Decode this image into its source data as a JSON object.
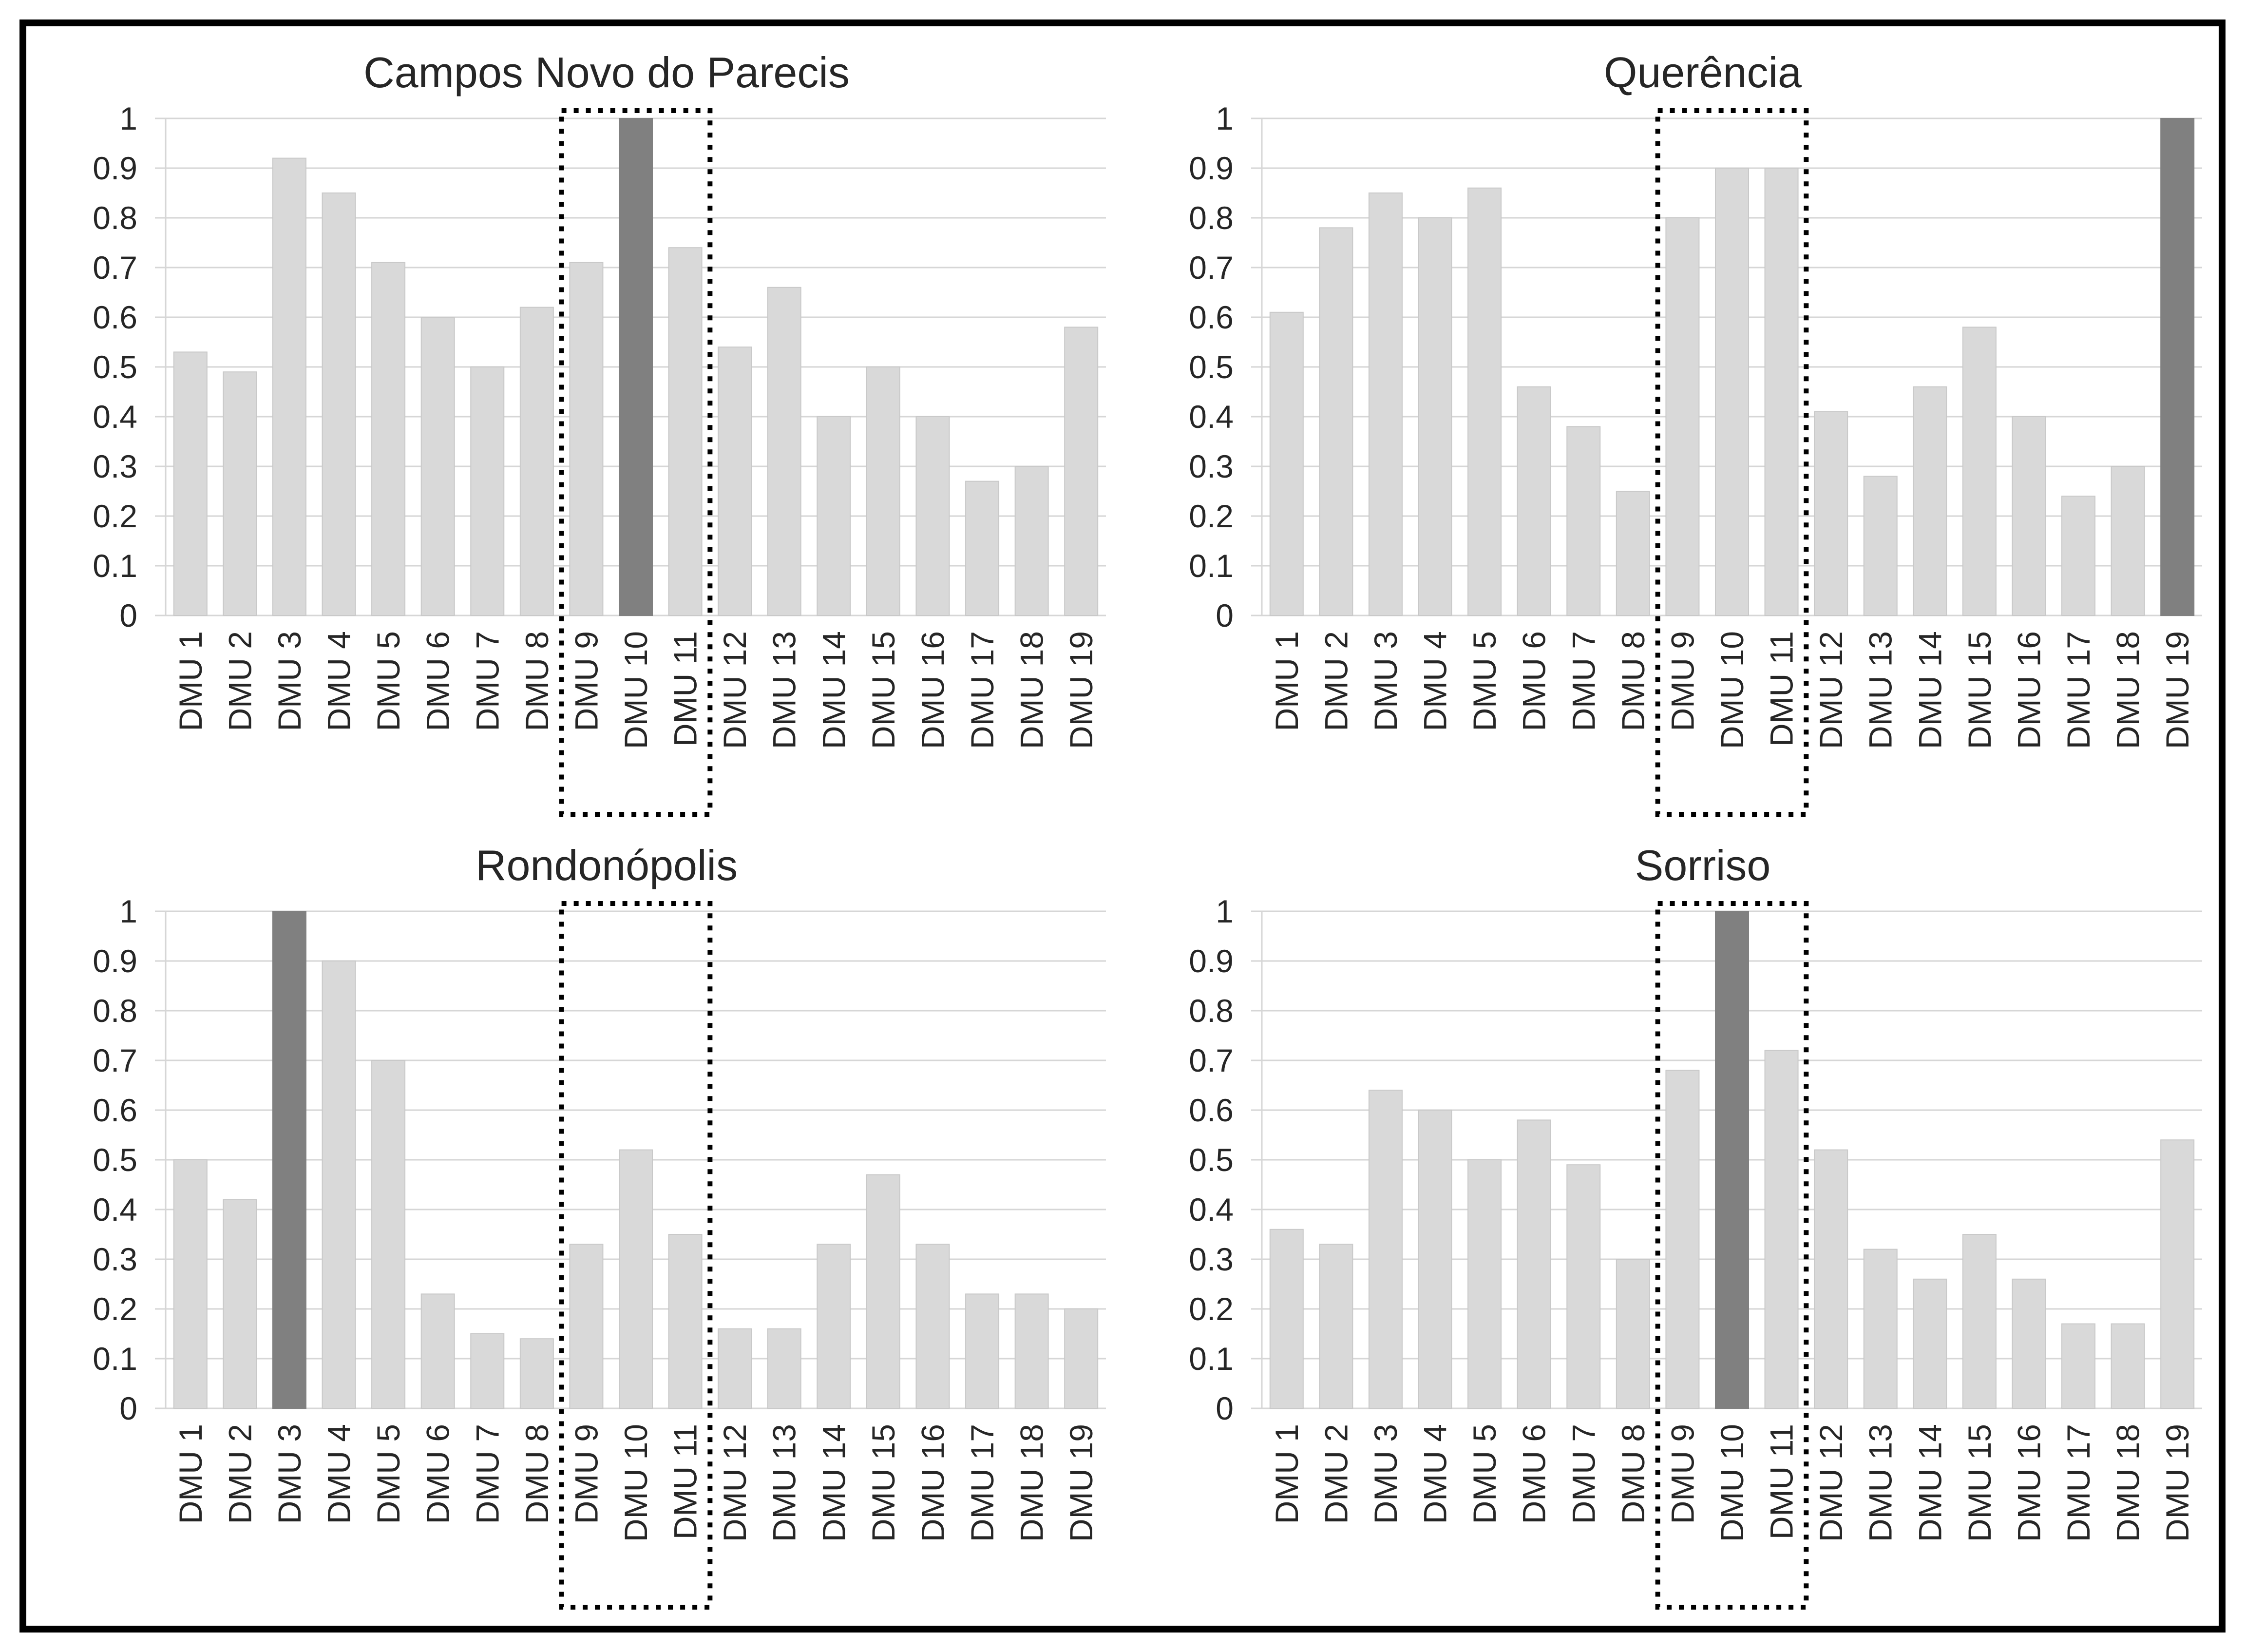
{
  "figure": {
    "background": "#ffffff",
    "border_color": "#000000"
  },
  "colors": {
    "bar": "#d9d9d9",
    "bar_border": "#c9c9c9",
    "highlight": "#808080",
    "gridline": "#d6d6d6",
    "text": "#262626",
    "box": "#000000"
  },
  "axis": {
    "ylim": [
      0,
      1
    ],
    "ytick_labels": [
      "0",
      "0.1",
      "0.2",
      "0.3",
      "0.4",
      "0.5",
      "0.6",
      "0.7",
      "0.8",
      "0.9",
      "1"
    ]
  },
  "chart_data": [
    {
      "type": "bar",
      "title": "Campos Novo do Parecis",
      "categories": [
        "DMU 1",
        "DMU 2",
        "DMU 3",
        "DMU 4",
        "DMU 5",
        "DMU 6",
        "DMU 7",
        "DMU 8",
        "DMU 9",
        "DMU 10",
        "DMU 11",
        "DMU 12",
        "DMU 13",
        "DMU 14",
        "DMU 15",
        "DMU 16",
        "DMU 17",
        "DMU 18",
        "DMU 19"
      ],
      "values": [
        0.53,
        0.49,
        0.92,
        0.85,
        0.71,
        0.6,
        0.5,
        0.62,
        0.71,
        1.0,
        0.74,
        0.54,
        0.66,
        0.4,
        0.5,
        0.4,
        0.27,
        0.3,
        0.58
      ],
      "ylim": [
        0,
        1
      ],
      "highlight_category": "DMU 10",
      "dotted_box": {
        "from": "DMU 9",
        "to": "DMU 11"
      },
      "grid": true,
      "legend": "none"
    },
    {
      "type": "bar",
      "title": "Querência",
      "categories": [
        "DMU 1",
        "DMU 2",
        "DMU 3",
        "DMU 4",
        "DMU 5",
        "DMU 6",
        "DMU 7",
        "DMU 8",
        "DMU 9",
        "DMU 10",
        "DMU 11",
        "DMU 12",
        "DMU 13",
        "DMU 14",
        "DMU 15",
        "DMU 16",
        "DMU 17",
        "DMU 18",
        "DMU 19"
      ],
      "values": [
        0.61,
        0.78,
        0.85,
        0.8,
        0.86,
        0.46,
        0.38,
        0.25,
        0.8,
        0.9,
        0.9,
        0.41,
        0.28,
        0.46,
        0.58,
        0.4,
        0.24,
        0.3,
        1.0
      ],
      "ylim": [
        0,
        1
      ],
      "highlight_category": "DMU 19",
      "dotted_box": {
        "from": "DMU 9",
        "to": "DMU 11"
      },
      "grid": true,
      "legend": "none"
    },
    {
      "type": "bar",
      "title": "Rondonópolis",
      "categories": [
        "DMU 1",
        "DMU 2",
        "DMU 3",
        "DMU 4",
        "DMU 5",
        "DMU 6",
        "DMU 7",
        "DMU 8",
        "DMU 9",
        "DMU 10",
        "DMU 11",
        "DMU 12",
        "DMU 13",
        "DMU 14",
        "DMU 15",
        "DMU 16",
        "DMU 17",
        "DMU 18",
        "DMU 19"
      ],
      "values": [
        0.5,
        0.42,
        1.0,
        0.9,
        0.7,
        0.23,
        0.15,
        0.14,
        0.33,
        0.52,
        0.35,
        0.16,
        0.16,
        0.33,
        0.47,
        0.33,
        0.23,
        0.23,
        0.2
      ],
      "ylim": [
        0,
        1
      ],
      "highlight_category": "DMU 3",
      "dotted_box": {
        "from": "DMU 9",
        "to": "DMU 11"
      },
      "grid": true,
      "legend": "none"
    },
    {
      "type": "bar",
      "title": "Sorriso",
      "categories": [
        "DMU 1",
        "DMU 2",
        "DMU 3",
        "DMU 4",
        "DMU 5",
        "DMU 6",
        "DMU 7",
        "DMU 8",
        "DMU 9",
        "DMU 10",
        "DMU 11",
        "DMU 12",
        "DMU 13",
        "DMU 14",
        "DMU 15",
        "DMU 16",
        "DMU 17",
        "DMU 18",
        "DMU 19"
      ],
      "values": [
        0.36,
        0.33,
        0.64,
        0.6,
        0.5,
        0.58,
        0.49,
        0.3,
        0.68,
        1.0,
        0.72,
        0.52,
        0.32,
        0.26,
        0.35,
        0.26,
        0.17,
        0.17,
        0.54
      ],
      "ylim": [
        0,
        1
      ],
      "highlight_category": "DMU 10",
      "dotted_box": {
        "from": "DMU 9",
        "to": "DMU 11"
      },
      "grid": true,
      "legend": "none"
    }
  ]
}
